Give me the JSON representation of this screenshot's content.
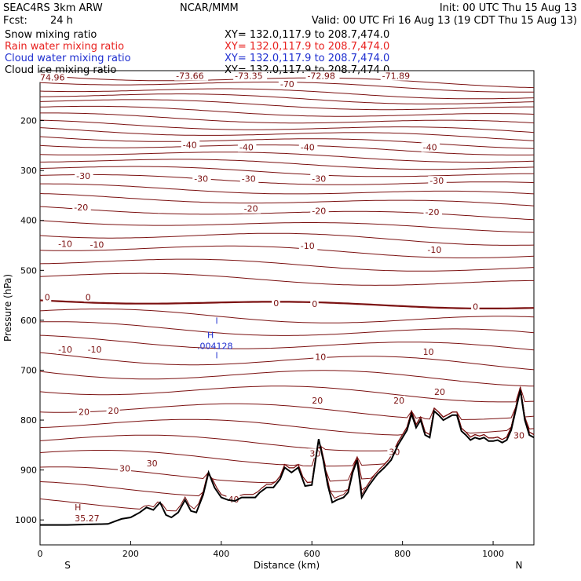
{
  "header": {
    "model": "SEAC4RS  3km ARW",
    "org": "NCAR/MMM",
    "init": "Init: 00 UTC Thu 15 Aug 13",
    "fcst_label": "Fcst:",
    "fcst_value": "24 h",
    "valid": "Valid: 00 UTC Fri 16 Aug 13 (19 CDT Thu 15 Aug 13)"
  },
  "legend": [
    {
      "name": "Snow mixing ratio",
      "xy": "XY=  132.0,117.9 to 208.7,474.0",
      "color": "#000000"
    },
    {
      "name": "Rain water mixing ratio",
      "xy": "XY=  132.0,117.9 to 208.7,474.0",
      "color": "#e8201e"
    },
    {
      "name": "Cloud water mixing ratio",
      "xy": "XY=  132.0,117.9 to 208.7,474.0",
      "color": "#1f2fd0"
    },
    {
      "name": "Cloud ice mixing ratio",
      "xy": "XY=  132.0,117.9 to 208.7,474.0",
      "color": "#000000"
    }
  ],
  "chart_data": {
    "type": "contour-cross-section",
    "xlabel": "Distance (km)",
    "ylabel": "Pressure (hPa)",
    "xlim": [
      0,
      1090
    ],
    "ylim": [
      1050,
      100
    ],
    "x_ticks": [
      0,
      200,
      400,
      600,
      800,
      1000
    ],
    "y_ticks": [
      200,
      300,
      400,
      500,
      600,
      700,
      800,
      900,
      1000
    ],
    "x_end_labels": {
      "left": "S",
      "right": "N"
    },
    "contour_color": "#7b1010",
    "terrain_color": "#000000",
    "contour_levels": [
      {
        "level_p": 110,
        "amp": 6,
        "labels": []
      },
      {
        "level_p": 120,
        "amp": 6,
        "labels": []
      },
      {
        "level_p": 135,
        "amp": 6,
        "labels": []
      },
      {
        "level_p": 147,
        "amp": 6,
        "labels": []
      },
      {
        "level_p": 160,
        "amp": 6,
        "labels": []
      },
      {
        "level_p": 175,
        "amp": 6,
        "labels": []
      },
      {
        "level_p": 190,
        "amp": 6,
        "labels": []
      },
      {
        "level_p": 205,
        "amp": 6,
        "labels": []
      },
      {
        "level_p": 218,
        "amp": 6,
        "labels": []
      },
      {
        "level_p": 232,
        "amp": 6,
        "labels": []
      },
      {
        "level_p": 246,
        "amp": 6,
        "labels": []
      },
      {
        "level_p": 262,
        "amp": 6,
        "labels": []
      },
      {
        "level_p": 278,
        "amp": 6,
        "labels": []
      },
      {
        "level_p": 294,
        "amp": 6,
        "labels": []
      },
      {
        "level_p": 312,
        "amp": 6,
        "labels": []
      },
      {
        "level_p": 332,
        "amp": 6,
        "labels": []
      },
      {
        "level_p": 352,
        "amp": 6,
        "labels": []
      },
      {
        "level_p": 376,
        "amp": 6,
        "labels": []
      },
      {
        "level_p": 400,
        "amp": 6,
        "labels": []
      },
      {
        "level_p": 425,
        "amp": 8,
        "labels": []
      },
      {
        "level_p": 452,
        "amp": 8,
        "labels": []
      },
      {
        "level_p": 480,
        "amp": 8,
        "labels": []
      },
      {
        "level_p": 510,
        "amp": 8,
        "labels": []
      },
      {
        "level_p": 585,
        "amp": 10,
        "labels": []
      },
      {
        "level_p": 612,
        "amp": 10,
        "labels": []
      },
      {
        "level_p": 640,
        "amp": 10,
        "labels": []
      },
      {
        "level_p": 672,
        "amp": 12,
        "labels": []
      },
      {
        "level_p": 702,
        "amp": 12,
        "labels": []
      },
      {
        "level_p": 735,
        "amp": 12,
        "labels": []
      },
      {
        "level_p": 772,
        "amp": 12,
        "labels": []
      },
      {
        "level_p": 805,
        "amp": 12,
        "labels": []
      },
      {
        "level_p": 838,
        "amp": 12,
        "labels": []
      },
      {
        "level_p": 870,
        "amp": 12,
        "labels": []
      },
      {
        "level_p": 905,
        "amp": 12,
        "labels": []
      },
      {
        "level_p": 935,
        "amp": 12,
        "labels": []
      },
      {
        "level_p": 965,
        "amp": 12,
        "labels": []
      }
    ],
    "zero_line_p": 560,
    "contour_labels": [
      {
        "text": "74.96",
        "x": 0,
        "p": 115
      },
      {
        "text": "-73.66",
        "x": 300,
        "p": 112
      },
      {
        "text": "-73.35",
        "x": 430,
        "p": 112
      },
      {
        "text": "-72.98",
        "x": 590,
        "p": 112
      },
      {
        "text": "-71.89",
        "x": 755,
        "p": 112
      },
      {
        "text": "-70",
        "x": 530,
        "p": 128
      },
      {
        "text": "-40",
        "x": 315,
        "p": 250
      },
      {
        "text": "-40",
        "x": 440,
        "p": 255
      },
      {
        "text": "-40",
        "x": 575,
        "p": 255
      },
      {
        "text": "-40",
        "x": 845,
        "p": 255
      },
      {
        "text": "-30",
        "x": 80,
        "p": 312
      },
      {
        "text": "-30",
        "x": 340,
        "p": 318
      },
      {
        "text": "-30",
        "x": 445,
        "p": 318
      },
      {
        "text": "-30",
        "x": 600,
        "p": 318
      },
      {
        "text": "-30",
        "x": 860,
        "p": 322
      },
      {
        "text": "-20",
        "x": 75,
        "p": 375
      },
      {
        "text": "-20",
        "x": 450,
        "p": 378
      },
      {
        "text": "-20",
        "x": 600,
        "p": 382
      },
      {
        "text": "-20",
        "x": 850,
        "p": 385
      },
      {
        "text": "-10",
        "x": 40,
        "p": 448
      },
      {
        "text": "-10",
        "x": 110,
        "p": 450
      },
      {
        "text": "-10",
        "x": 575,
        "p": 452
      },
      {
        "text": "-10",
        "x": 855,
        "p": 460
      },
      {
        "text": "0",
        "x": 10,
        "p": 555
      },
      {
        "text": "0",
        "x": 100,
        "p": 555
      },
      {
        "text": "0",
        "x": 515,
        "p": 567
      },
      {
        "text": "0",
        "x": 600,
        "p": 569
      },
      {
        "text": "0",
        "x": 955,
        "p": 574
      },
      {
        "text": "-10",
        "x": 40,
        "p": 660
      },
      {
        "text": "-10",
        "x": 105,
        "p": 660
      },
      {
        "text": "10",
        "x": 607,
        "p": 675
      },
      {
        "text": "10",
        "x": 845,
        "p": 665
      },
      {
        "text": "20",
        "x": 85,
        "p": 785
      },
      {
        "text": "20",
        "x": 150,
        "p": 783
      },
      {
        "text": "20",
        "x": 600,
        "p": 762
      },
      {
        "text": "20",
        "x": 780,
        "p": 762
      },
      {
        "text": "20",
        "x": 870,
        "p": 745
      },
      {
        "text": "30",
        "x": 175,
        "p": 898
      },
      {
        "text": "30",
        "x": 235,
        "p": 888
      },
      {
        "text": "30",
        "x": 595,
        "p": 868
      },
      {
        "text": "30",
        "x": 770,
        "p": 865
      },
      {
        "text": "30",
        "x": 1045,
        "p": 832
      },
      {
        "text": "40",
        "x": 415,
        "p": 960
      }
    ],
    "cloud_water": {
      "max_label": "H",
      "max_value": ".004128",
      "x": 390,
      "p": 648,
      "color": "#1f2fd0"
    },
    "rain_max": {
      "max_label": "H",
      "max_value": "35.27",
      "x": 80,
      "p": 993,
      "color": "#7b1010"
    },
    "terrain": {
      "x": [
        0,
        60,
        150,
        165,
        180,
        200,
        220,
        235,
        250,
        265,
        278,
        290,
        305,
        320,
        333,
        345,
        360,
        372,
        385,
        400,
        415,
        430,
        445,
        460,
        475,
        485,
        500,
        515,
        530,
        540,
        555,
        570,
        585,
        600,
        615,
        625,
        635,
        645,
        655,
        670,
        680,
        690,
        700,
        710,
        725,
        735,
        745,
        760,
        775,
        790,
        800,
        810,
        820,
        830,
        840,
        850,
        860,
        870,
        880,
        890,
        900,
        910,
        920,
        930,
        940,
        950,
        960,
        970,
        980,
        990,
        1000,
        1010,
        1020,
        1030,
        1040,
        1050,
        1060,
        1070,
        1080,
        1090
      ],
      "p": [
        1010,
        1010,
        1008,
        1003,
        998,
        995,
        985,
        975,
        980,
        965,
        990,
        995,
        985,
        960,
        982,
        985,
        950,
        905,
        935,
        955,
        960,
        962,
        955,
        955,
        955,
        945,
        935,
        935,
        918,
        895,
        905,
        895,
        932,
        930,
        838,
        880,
        930,
        965,
        960,
        955,
        945,
        905,
        880,
        955,
        932,
        920,
        908,
        895,
        880,
        850,
        835,
        820,
        788,
        815,
        800,
        830,
        835,
        782,
        790,
        800,
        795,
        790,
        790,
        822,
        830,
        840,
        835,
        838,
        835,
        842,
        842,
        840,
        845,
        840,
        820,
        780,
        740,
        800,
        830,
        835
      ]
    }
  }
}
